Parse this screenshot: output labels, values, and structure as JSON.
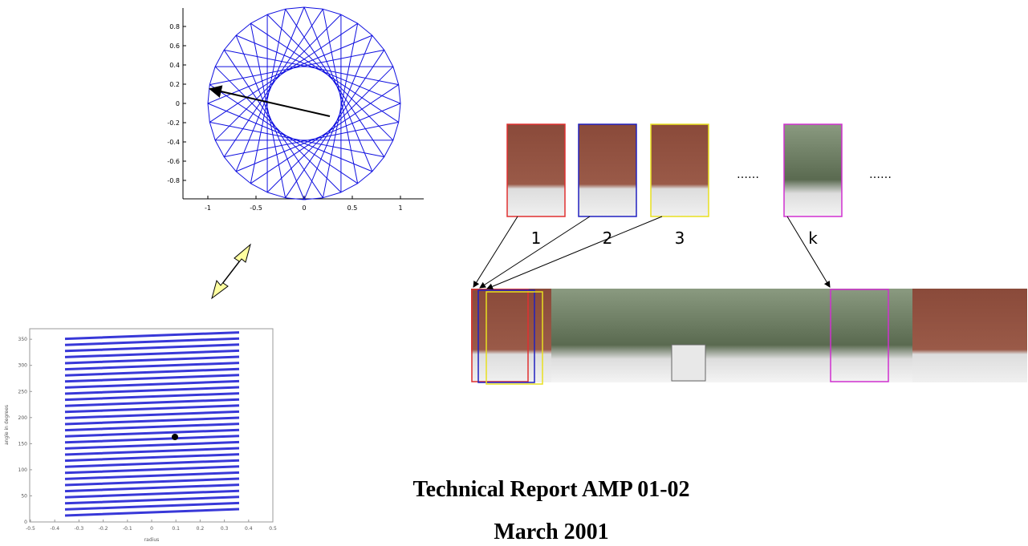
{
  "top_plot": {
    "xticks": [
      -1,
      -0.5,
      0,
      0.5,
      1
    ],
    "yticks": [
      0.8,
      0.6,
      0.4,
      0.2,
      0,
      -0.2,
      -0.4,
      -0.6,
      -0.8
    ]
  },
  "bottom_plot": {
    "xticks": [
      -0.5,
      -0.4,
      -0.3,
      -0.2,
      -0.1,
      0,
      0.1,
      0.2,
      0.3,
      0.4,
      0.5
    ],
    "yticks": [
      0,
      50,
      100,
      150,
      200,
      250,
      300,
      350
    ],
    "xlabel": "radius",
    "ylabel": "angle in degrees"
  },
  "frames": {
    "labels": [
      "1",
      "2",
      "3",
      "k"
    ],
    "ellipses": [
      "……",
      "……"
    ]
  },
  "report": {
    "title": "Technical Report AMP 01-02",
    "date": "March 2001"
  }
}
